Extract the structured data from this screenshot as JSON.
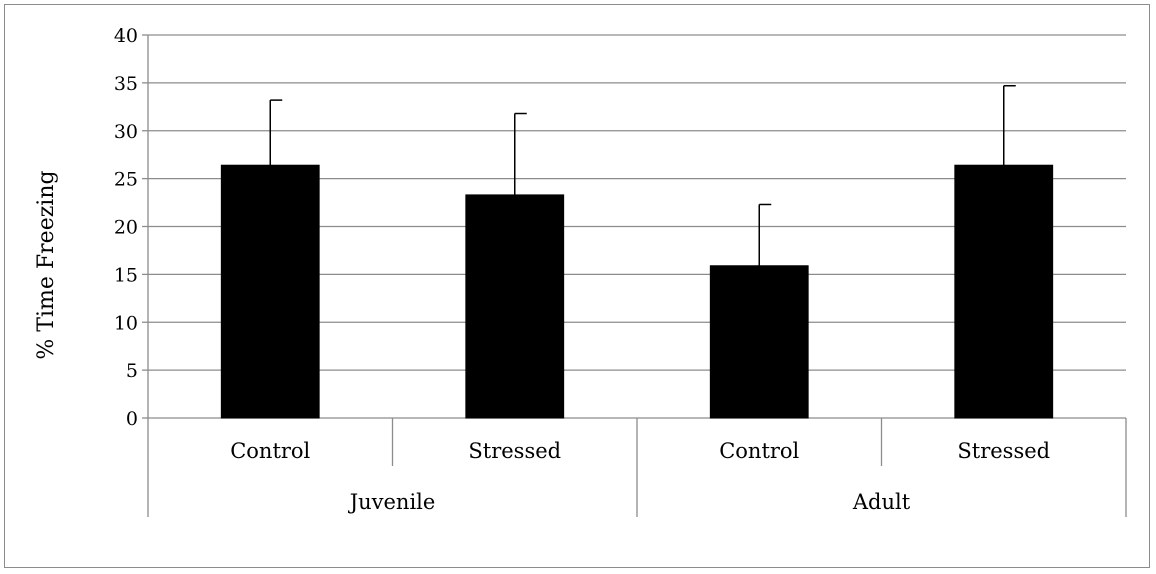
{
  "chart_data": {
    "type": "bar",
    "title": "",
    "xlabel": "",
    "ylabel": "% Time Freezing",
    "ylim": [
      0,
      40
    ],
    "yticks": [
      0,
      5,
      10,
      15,
      20,
      25,
      30,
      35,
      40
    ],
    "grid": true,
    "legend": "none",
    "bar_color": "#000000",
    "groups": [
      "Juvenile",
      "Adult"
    ],
    "categories": [
      "Control",
      "Stressed",
      "Control",
      "Stressed"
    ],
    "category_groups": [
      "Juvenile",
      "Juvenile",
      "Adult",
      "Adult"
    ],
    "values": [
      26.4,
      23.3,
      15.9,
      26.4
    ],
    "errors": [
      6.8,
      8.5,
      6.4,
      8.3
    ]
  }
}
